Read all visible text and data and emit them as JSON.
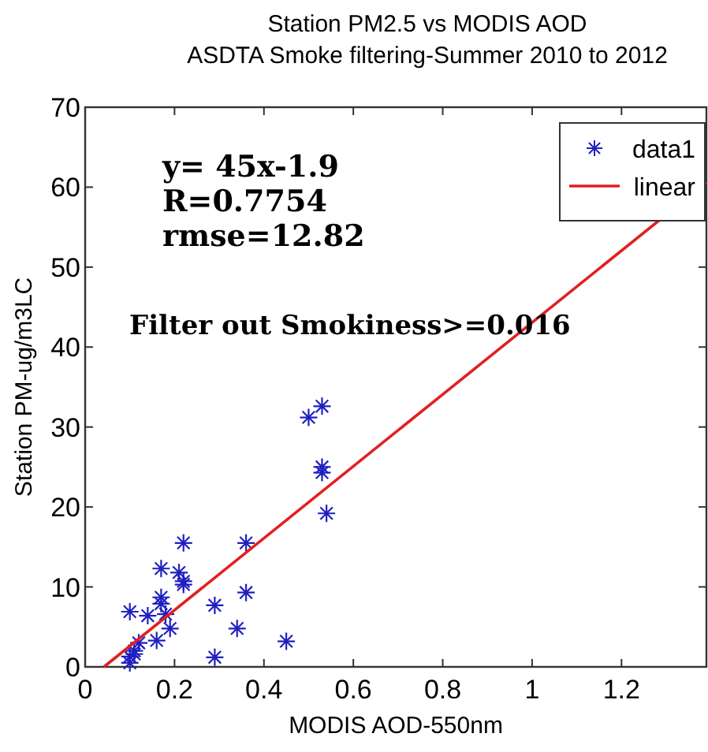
{
  "chart_data": {
    "type": "scatter",
    "title": "Station PM2.5 vs MODIS AOD",
    "subtitle": "ASDTA Smoke filtering-Summer 2010 to 2012",
    "xlabel": "MODIS AOD-550nm",
    "ylabel": "Station PM-ug/m3LC",
    "xlim": [
      0,
      1.39
    ],
    "ylim": [
      0,
      70
    ],
    "xticks": [
      0,
      0.2,
      0.4,
      0.6,
      0.8,
      1,
      1.2
    ],
    "yticks": [
      0,
      10,
      20,
      30,
      40,
      50,
      60,
      70
    ],
    "grid": false,
    "legend": "top right",
    "marker": "cross",
    "annotations": [
      "y= 45x-1.9",
      "R=0.7754",
      "rmse=12.82",
      "Filter out Smokiness>=0.016"
    ],
    "series": [
      {
        "name": "data1",
        "color": "#2020c0",
        "x": [
          0.1,
          0.14,
          0.17,
          0.22,
          0.21,
          0.22,
          0.22,
          0.17,
          0.17,
          0.18,
          0.19,
          0.16,
          0.12,
          0.11,
          0.1,
          0.1,
          0.11,
          0.29,
          0.29,
          0.36,
          0.36,
          0.34,
          0.45,
          0.54,
          0.53,
          0.53,
          0.5,
          0.53
        ],
        "values": [
          6.9,
          6.4,
          12.3,
          15.5,
          11.8,
          10.7,
          10.3,
          8.7,
          7.9,
          6.6,
          4.8,
          3.3,
          3.0,
          2.0,
          1.3,
          0.5,
          1.6,
          7.7,
          1.2,
          15.5,
          9.3,
          4.8,
          3.2,
          19.2,
          24.3,
          25.0,
          31.2,
          32.6
        ]
      },
      {
        "name": "linear",
        "type": "line",
        "color": "#e02020",
        "line_style": "solid",
        "marker": "none",
        "x": [
          0.042,
          1.39
        ],
        "values": [
          0,
          60.6
        ]
      }
    ]
  }
}
